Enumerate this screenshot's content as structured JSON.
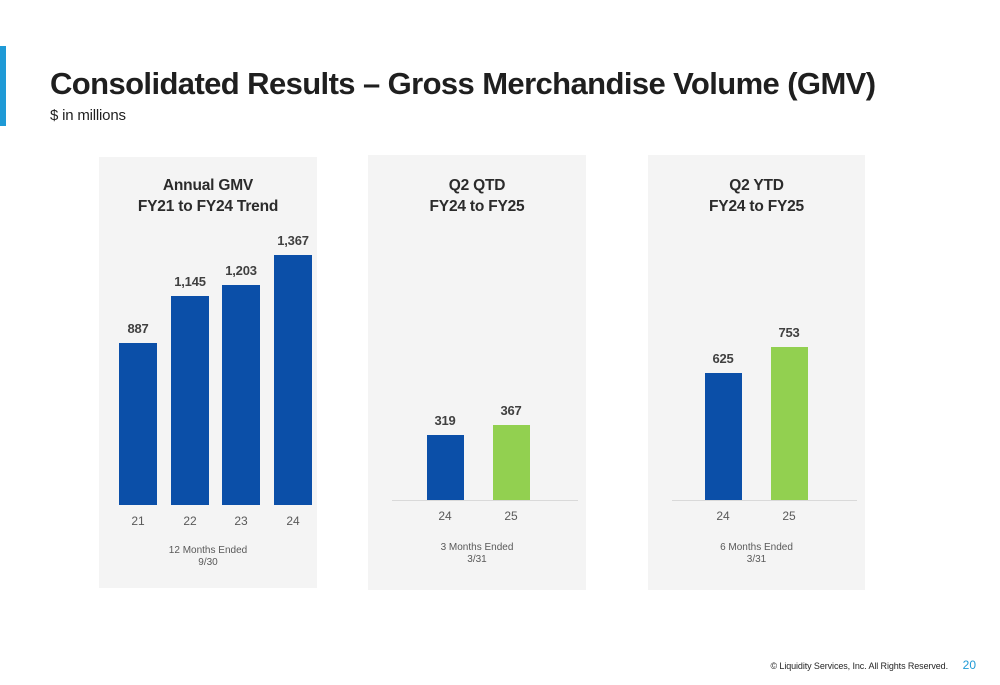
{
  "header": {
    "title": "Consolidated Results – Gross Merchandise Volume (GMV)",
    "subtitle": "$ in millions"
  },
  "colors": {
    "accent": "#1f9ad6",
    "fy24_bar": "#0b4fa8",
    "fy25_bar": "#92d050",
    "panel_background": "#f4f4f4"
  },
  "chart_data": [
    {
      "type": "bar",
      "title_lines": [
        "Annual GMV",
        "FY21 to FY24 Trend"
      ],
      "categories": [
        "21",
        "22",
        "23",
        "24"
      ],
      "values": [
        887,
        1145,
        1203,
        1367
      ],
      "value_labels": [
        "887",
        "1,145",
        "1,203",
        "1,367"
      ],
      "bar_colors": [
        "#0b4fa8",
        "#0b4fa8",
        "#0b4fa8",
        "#0b4fa8"
      ],
      "footnote_lines": [
        "12 Months Ended",
        "9/30"
      ],
      "ylim": [
        0,
        1367
      ]
    },
    {
      "type": "bar",
      "title_lines": [
        "Q2 QTD",
        "FY24 to FY25"
      ],
      "categories": [
        "24",
        "25"
      ],
      "values": [
        319,
        367
      ],
      "value_labels": [
        "319",
        "367"
      ],
      "bar_colors": [
        "#0b4fa8",
        "#92d050"
      ],
      "footnote_lines": [
        "3 Months Ended",
        "3/31"
      ],
      "ylim": [
        0,
        753
      ]
    },
    {
      "type": "bar",
      "title_lines": [
        "Q2 YTD",
        "FY24 to FY25"
      ],
      "categories": [
        "24",
        "25"
      ],
      "values": [
        625,
        753
      ],
      "value_labels": [
        "625",
        "753"
      ],
      "bar_colors": [
        "#0b4fa8",
        "#92d050"
      ],
      "footnote_lines": [
        "6 Months Ended",
        "3/31"
      ],
      "ylim": [
        0,
        753
      ]
    }
  ],
  "footer": {
    "copyright": "© Liquidity Services, Inc. All Rights Reserved.",
    "page_number": "20"
  }
}
